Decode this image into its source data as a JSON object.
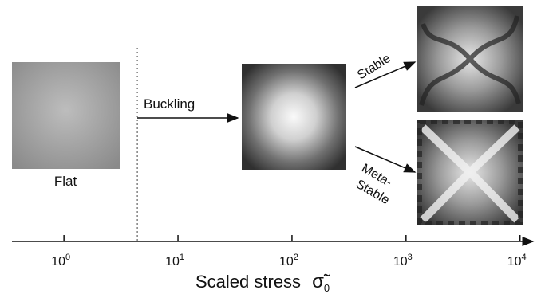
{
  "labels": {
    "flat": "Flat",
    "buckling": "Buckling",
    "stable": "Stable",
    "metastable": [
      "Meta-",
      "Stable"
    ]
  },
  "axis": {
    "label": "Scaled stress",
    "symbol": "σ̃",
    "subscript": "0",
    "log": true,
    "xlim": [
      0.35,
      13000
    ],
    "ticks": [
      {
        "value": 1,
        "label": "10",
        "exponent": "0"
      },
      {
        "value": 10,
        "label": "10",
        "exponent": "1"
      },
      {
        "value": 100,
        "label": "10",
        "exponent": "2"
      },
      {
        "value": 1000,
        "label": "10",
        "exponent": "3"
      },
      {
        "value": 10000,
        "label": "10",
        "exponent": "4"
      }
    ],
    "threshold": 4.4
  }
}
